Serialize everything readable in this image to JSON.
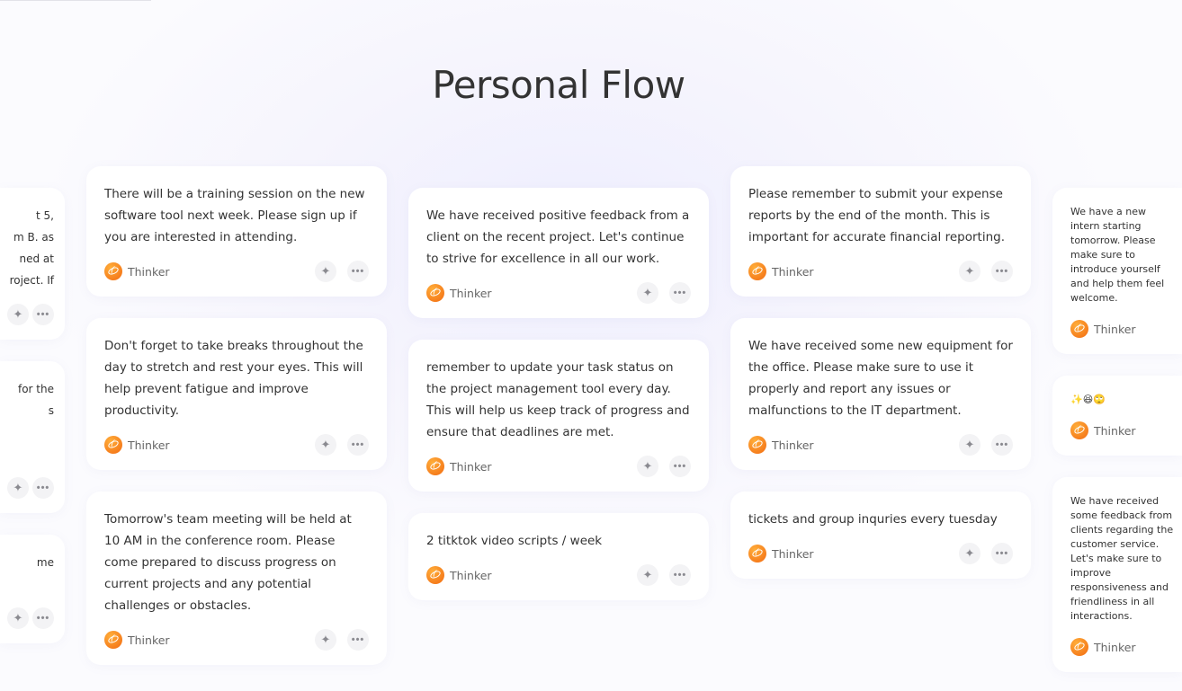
{
  "title": "Personal Flow",
  "author_label": "Thinker",
  "icons": {
    "avatar": "thinker-logo-icon",
    "ai": "sparkle-icon",
    "more": "more-dots-icon"
  },
  "colors": {
    "accent": "#f47a1a",
    "text": "#333333"
  },
  "columns": [
    {
      "cards": [
        {
          "lines": [
            "t 5,",
            "m B. as",
            "ned at",
            "roject. If"
          ],
          "partial": true
        },
        {
          "lines": [
            "for the",
            "s",
            "",
            ""
          ],
          "partial": true
        },
        {
          "lines": [
            "me",
            ""
          ],
          "partial": true
        }
      ]
    },
    {
      "cards": [
        {
          "text": "There will be a training session on the new software tool next week. Please sign up if you are interested in attending."
        },
        {
          "text": "Don't forget to take breaks throughout the day to stretch and rest your eyes. This will help prevent fatigue and improve productivity."
        },
        {
          "text": "Tomorrow's team meeting will be held at 10 AM in the conference room. Please come prepared to discuss progress on current projects and any potential challenges or obstacles."
        }
      ]
    },
    {
      "cards": [
        {
          "text": "We have received positive feedback from a client on the recent project. Let's continue to strive for excellence in all our work."
        },
        {
          "text": "remember to update your task status on the project management tool every day. This will help us keep track of progress and ensure that deadlines are met."
        },
        {
          "text": "2 titktok video scripts / week"
        }
      ]
    },
    {
      "cards": [
        {
          "text": "Please remember to submit your expense reports by the end of the month. This is important for accurate financial reporting."
        },
        {
          "text": "We have received some new equipment for the office. Please make sure to use it properly and report any issues or malfunctions to the IT department."
        },
        {
          "text": "tickets and group inquries every tuesday"
        }
      ]
    },
    {
      "cards": [
        {
          "text": "We have a new intern starting tomorrow. Please make sure to introduce yourself and help them feel welcome."
        },
        {
          "text": "✨😆🙄"
        },
        {
          "text": "We have received some feedback from clients regarding the customer service. Let's make sure to improve responsiveness and friendliness in all interactions."
        }
      ]
    }
  ]
}
